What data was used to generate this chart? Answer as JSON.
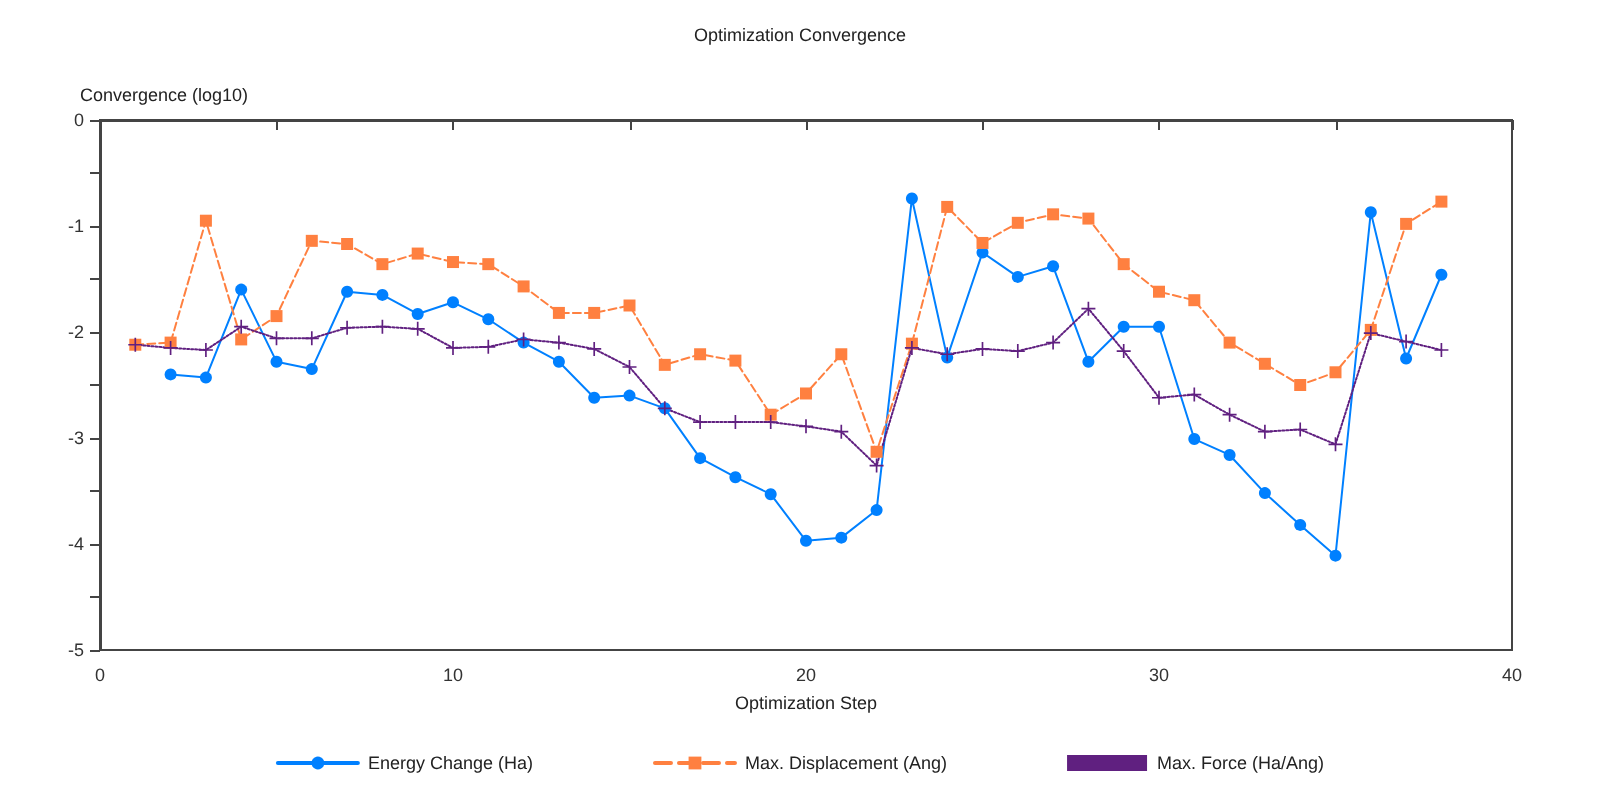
{
  "chart_data": {
    "type": "line",
    "title": "Optimization Convergence",
    "xlabel": "Optimization Step",
    "ylabel": "Convergence (log10)",
    "x": [
      1,
      2,
      3,
      4,
      5,
      6,
      7,
      8,
      9,
      10,
      11,
      12,
      13,
      14,
      15,
      16,
      17,
      18,
      19,
      20,
      21,
      22,
      23,
      24,
      25,
      26,
      27,
      28,
      29,
      30,
      31,
      32,
      33,
      34,
      35,
      36,
      37,
      38
    ],
    "series": [
      {
        "name": "Energy Change (Ha)",
        "color": "#0080ff",
        "marker": "circle",
        "line_style": "solid",
        "values": [
          null,
          -2.4,
          -2.43,
          -1.6,
          -2.28,
          -2.35,
          -1.62,
          -1.65,
          -1.83,
          -1.72,
          -1.88,
          -2.1,
          -2.28,
          -2.62,
          -2.6,
          -2.72,
          -3.19,
          -3.37,
          -3.53,
          -3.97,
          -3.94,
          -3.68,
          -0.74,
          -2.24,
          -1.25,
          -1.48,
          -1.38,
          -2.28,
          -1.95,
          -1.95,
          -3.01,
          -3.16,
          -3.52,
          -3.82,
          -4.11,
          -0.87,
          -2.25,
          -1.46
        ]
      },
      {
        "name": "Max. Displacement (Ang)",
        "color": "#ff8040",
        "marker": "square",
        "line_style": "dashed",
        "values": [
          -2.12,
          -2.1,
          -0.95,
          -2.07,
          -1.85,
          -1.14,
          -1.17,
          -1.36,
          -1.26,
          -1.34,
          -1.36,
          -1.57,
          -1.82,
          -1.82,
          -1.75,
          -2.31,
          -2.21,
          -2.27,
          -2.78,
          -2.58,
          -2.21,
          -3.13,
          -2.11,
          -0.82,
          -1.16,
          -0.97,
          -0.89,
          -0.93,
          -1.36,
          -1.62,
          -1.7,
          -2.1,
          -2.3,
          -2.5,
          -2.38,
          -1.98,
          -0.98,
          -0.77
        ]
      },
      {
        "name": "Max. Force (Ha/Ang)",
        "color": "#602080",
        "marker": "cross",
        "line_style": "dotted",
        "values": [
          -2.12,
          -2.15,
          -2.17,
          -1.95,
          -2.06,
          -2.06,
          -1.96,
          -1.95,
          -1.97,
          -2.15,
          -2.14,
          -2.07,
          -2.1,
          -2.16,
          -2.33,
          -2.72,
          -2.85,
          -2.85,
          -2.85,
          -2.89,
          -2.94,
          -3.26,
          -2.15,
          -2.21,
          -2.16,
          -2.18,
          -2.1,
          -1.78,
          -2.18,
          -2.62,
          -2.59,
          -2.78,
          -2.94,
          -2.92,
          -3.06,
          -2.01,
          -2.09,
          -2.17
        ]
      }
    ],
    "xlim": [
      0,
      40
    ],
    "xticks": [
      0,
      {
        "value": 5,
        "label": null
      },
      10,
      {
        "value": 15,
        "label": null
      },
      20,
      {
        "value": 25,
        "label": null
      },
      30,
      {
        "value": 35,
        "label": null
      },
      40
    ],
    "ylim": [
      -5,
      0
    ],
    "yticks": [
      -5,
      {
        "value": -4.5,
        "label": null
      },
      -4,
      {
        "value": -3.5,
        "label": null
      },
      -3,
      {
        "value": -2.5,
        "label": null
      },
      -2,
      {
        "value": -1.5,
        "label": null
      },
      -1,
      {
        "value": -0.5,
        "label": null
      },
      0
    ],
    "grid": false,
    "legend": "bottom"
  }
}
